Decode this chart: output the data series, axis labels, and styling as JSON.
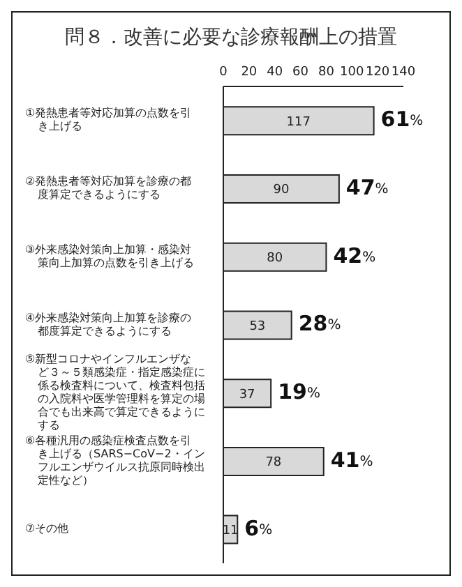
{
  "chart_data": {
    "type": "bar",
    "orientation": "horizontal",
    "title": "問８．改善に必要な診療報酬上の措置",
    "categories": [
      "①発熱患者等対応加算の点数を引き上げる",
      "②発熱患者等対応加算を診療の都度算定できるようにする",
      "③外来感染対策向上加算・感染対策向上加算の点数を引き上げる",
      "④外来感染対策向上加算を診療の都度算定できるようにする",
      "⑤新型コロナやインフルエンザなど３～５類感染症・指定感染症に係る検査料について、検査料包括の入院料や医学管理料を算定の場合でも出来高で算定できるようにする",
      "⑥各種汎用の感染症検査点数を引き上げる（SARS−CoV−2・インフルエンザウイルス抗原同時検出定性など）",
      "⑦その他"
    ],
    "values": [
      117,
      90,
      80,
      53,
      37,
      78,
      11
    ],
    "color": "#d9d9d9",
    "data_labels": true,
    "xlim": [
      0,
      140
    ],
    "xticks": [
      0,
      20,
      40,
      60,
      80,
      100,
      120,
      140
    ],
    "grid": false,
    "legend": false,
    "annotations": [
      {
        "text": "61%",
        "x": 117,
        "y": "①発熱患者等対応加算の点数を引き上げる"
      },
      {
        "text": "47%",
        "x": 90,
        "y": "②発熱患者等対応加算を診療の都度算定できるようにする"
      },
      {
        "text": "42%",
        "x": 80,
        "y": "③外来感染対策向上加算・感染対策向上加算の点数を引き上げる"
      },
      {
        "text": "28%",
        "x": 53,
        "y": "④外来感染対策向上加算を診療の都度算定できるようにする"
      },
      {
        "text": "19%",
        "x": 37,
        "y": "⑤新型コロナやインフルエンザなど３～５類感染症・指定感染症に係る検査料について、検査料包括の入院料や医学管理料を算定の場合でも出来高で算定できるようにする"
      },
      {
        "text": "41%",
        "x": 78,
        "y": "⑥各種汎用の感染症検査点数を引き上げる（SARS−CoV−2・インフルエンザウイルス抗原同時検出定性など）"
      },
      {
        "text": "6%",
        "x": 11,
        "y": "⑦その他"
      }
    ]
  }
}
